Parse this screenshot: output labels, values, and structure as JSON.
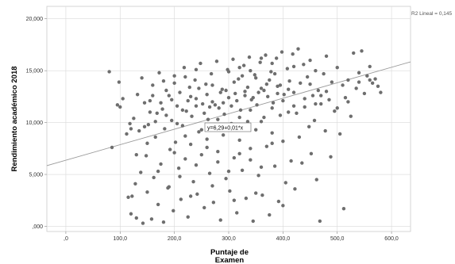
{
  "chart_data": {
    "type": "scatter",
    "title": "",
    "xlabel": "Puntaje de Examen",
    "xlabel_lines": [
      "Puntaje de",
      "Examen"
    ],
    "ylabel": "Rendimiento académico 2018",
    "xlim": [
      -35,
      635
    ],
    "ylim": [
      -500,
      21200
    ],
    "x_ticks": [
      0,
      100,
      200,
      300,
      400,
      500,
      600
    ],
    "x_tick_labels": [
      ",0",
      "100,0",
      "200,0",
      "300,0",
      "400,0",
      "500,0",
      "600,0"
    ],
    "y_ticks": [
      0,
      5000,
      10000,
      15000,
      20000
    ],
    "y_tick_labels": [
      ",000",
      "5,000",
      "10,000",
      "15,000",
      "20,000"
    ],
    "grid": true,
    "marker_color": "#6e6e6e",
    "fit_line": {
      "type": "linear",
      "equation_label": "y=6,29+0,01*x",
      "x_start": -35,
      "y_start": 5850,
      "x_end": 635,
      "y_end": 15850,
      "r2_label": "R2 Lineal = 0,145",
      "color": "#9a9a9a"
    },
    "series": [
      {
        "points": [
          [
            80,
            14900
          ],
          [
            85,
            7600
          ],
          [
            95,
            11700
          ],
          [
            98,
            13900
          ],
          [
            100,
            11500
          ],
          [
            105,
            12300
          ],
          [
            112,
            8900
          ],
          [
            115,
            2800
          ],
          [
            118,
            9900
          ],
          [
            120,
            1200
          ],
          [
            122,
            2900
          ],
          [
            125,
            10400
          ],
          [
            128,
            4100
          ],
          [
            130,
            800
          ],
          [
            132,
            12700
          ],
          [
            135,
            9200
          ],
          [
            138,
            5200
          ],
          [
            140,
            14300
          ],
          [
            142,
            300
          ],
          [
            145,
            11900
          ],
          [
            148,
            6800
          ],
          [
            150,
            3300
          ],
          [
            152,
            9800
          ],
          [
            155,
            12100
          ],
          [
            158,
            700
          ],
          [
            160,
            13600
          ],
          [
            162,
            4700
          ],
          [
            165,
            8600
          ],
          [
            168,
            10900
          ],
          [
            170,
            2100
          ],
          [
            172,
            14800
          ],
          [
            175,
            6000
          ],
          [
            178,
            11300
          ],
          [
            180,
            400
          ],
          [
            182,
            9400
          ],
          [
            185,
            13100
          ],
          [
            188,
            3700
          ],
          [
            190,
            12600
          ],
          [
            192,
            7400
          ],
          [
            195,
            10200
          ],
          [
            198,
            1500
          ],
          [
            200,
            14500
          ],
          [
            202,
            8100
          ],
          [
            205,
            11600
          ],
          [
            208,
            5600
          ],
          [
            210,
            12900
          ],
          [
            212,
            2600
          ],
          [
            215,
            9700
          ],
          [
            218,
            15300
          ],
          [
            220,
            6500
          ],
          [
            222,
            11100
          ],
          [
            225,
            900
          ],
          [
            228,
            13400
          ],
          [
            230,
            7900
          ],
          [
            232,
            10600
          ],
          [
            235,
            4300
          ],
          [
            238,
            14100
          ],
          [
            240,
            12300
          ],
          [
            242,
            3100
          ],
          [
            245,
            9100
          ],
          [
            248,
            15700
          ],
          [
            250,
            6900
          ],
          [
            252,
            11800
          ],
          [
            255,
            1800
          ],
          [
            258,
            13700
          ],
          [
            260,
            8400
          ],
          [
            262,
            10300
          ],
          [
            265,
            5100
          ],
          [
            268,
            14700
          ],
          [
            270,
            12000
          ],
          [
            272,
            2300
          ],
          [
            275,
            9500
          ],
          [
            278,
            15900
          ],
          [
            280,
            7200
          ],
          [
            282,
            11400
          ],
          [
            285,
            600
          ],
          [
            288,
            13200
          ],
          [
            290,
            8800
          ],
          [
            292,
            10800
          ],
          [
            295,
            4600
          ],
          [
            298,
            15100
          ],
          [
            300,
            12400
          ],
          [
            302,
            3400
          ],
          [
            305,
            9900
          ],
          [
            308,
            16100
          ],
          [
            310,
            6600
          ],
          [
            312,
            12800
          ],
          [
            315,
            1300
          ],
          [
            318,
            14200
          ],
          [
            320,
            8300
          ],
          [
            322,
            11200
          ],
          [
            325,
            5400
          ],
          [
            328,
            15500
          ],
          [
            330,
            13000
          ],
          [
            332,
            2700
          ],
          [
            335,
            10100
          ],
          [
            338,
            16300
          ],
          [
            340,
            7500
          ],
          [
            342,
            12200
          ],
          [
            345,
            500
          ],
          [
            348,
            14600
          ],
          [
            350,
            9300
          ],
          [
            352,
            11700
          ],
          [
            355,
            4900
          ],
          [
            358,
            15800
          ],
          [
            360,
            13300
          ],
          [
            362,
            3000
          ],
          [
            365,
            10500
          ],
          [
            368,
            16500
          ],
          [
            370,
            7700
          ],
          [
            372,
            12500
          ],
          [
            375,
            1100
          ],
          [
            378,
            14900
          ],
          [
            380,
            9000
          ],
          [
            382,
            11900
          ],
          [
            385,
            5800
          ],
          [
            388,
            16200
          ],
          [
            390,
            13500
          ],
          [
            392,
            2400
          ],
          [
            395,
            10700
          ],
          [
            398,
            16800
          ],
          [
            400,
            8200
          ],
          [
            402,
            12700
          ],
          [
            405,
            4200
          ],
          [
            408,
            15200
          ],
          [
            410,
            11000
          ],
          [
            412,
            14000
          ],
          [
            415,
            6300
          ],
          [
            418,
            16600
          ],
          [
            420,
            12900
          ],
          [
            422,
            3600
          ],
          [
            425,
            10900
          ],
          [
            428,
            17100
          ],
          [
            430,
            8600
          ],
          [
            432,
            13800
          ],
          [
            435,
            6100
          ],
          [
            438,
            15600
          ],
          [
            440,
            11500
          ],
          [
            445,
            14400
          ],
          [
            448,
            9600
          ],
          [
            450,
            16000
          ],
          [
            452,
            7000
          ],
          [
            455,
            12600
          ],
          [
            458,
            10200
          ],
          [
            460,
            15000
          ],
          [
            462,
            4500
          ],
          [
            465,
            13100
          ],
          [
            468,
            500
          ],
          [
            470,
            11800
          ],
          [
            475,
            14700
          ],
          [
            478,
            9200
          ],
          [
            480,
            16400
          ],
          [
            485,
            12200
          ],
          [
            488,
            6700
          ],
          [
            490,
            13900
          ],
          [
            495,
            11100
          ],
          [
            500,
            15300
          ],
          [
            505,
            8900
          ],
          [
            510,
            13600
          ],
          [
            512,
            1700
          ],
          [
            515,
            12400
          ],
          [
            520,
            14100
          ],
          [
            525,
            10600
          ],
          [
            530,
            16700
          ],
          [
            535,
            13300
          ],
          [
            540,
            14800
          ],
          [
            545,
            16900
          ],
          [
            550,
            12800
          ],
          [
            555,
            14500
          ],
          [
            560,
            15400
          ],
          [
            565,
            13800
          ],
          [
            570,
            14200
          ],
          [
            575,
            13500
          ],
          [
            580,
            12900
          ],
          [
            260,
            12700
          ],
          [
            240,
            11600
          ],
          [
            230,
            12500
          ],
          [
            270,
            13600
          ],
          [
            290,
            11900
          ],
          [
            310,
            13900
          ],
          [
            330,
            12600
          ],
          [
            350,
            14300
          ],
          [
            370,
            13700
          ],
          [
            390,
            12800
          ],
          [
            410,
            13200
          ],
          [
            255,
            10900
          ],
          [
            275,
            11700
          ],
          [
            295,
            13100
          ],
          [
            315,
            12100
          ],
          [
            335,
            13400
          ],
          [
            355,
            12900
          ],
          [
            375,
            14100
          ],
          [
            395,
            13600
          ],
          [
            215,
            11200
          ],
          [
            225,
            12100
          ],
          [
            245,
            13300
          ],
          [
            265,
            11500
          ],
          [
            285,
            12900
          ],
          [
            305,
            11600
          ],
          [
            325,
            14500
          ],
          [
            345,
            12400
          ],
          [
            365,
            13100
          ],
          [
            385,
            14700
          ],
          [
            205,
            9900
          ],
          [
            195,
            12200
          ],
          [
            185,
            10700
          ],
          [
            175,
            11900
          ],
          [
            165,
            10100
          ],
          [
            155,
            11000
          ],
          [
            145,
            9600
          ],
          [
            220,
            8700
          ],
          [
            250,
            9300
          ],
          [
            280,
            10300
          ],
          [
            300,
            9800
          ],
          [
            320,
            10500
          ],
          [
            340,
            11200
          ],
          [
            360,
            10100
          ],
          [
            380,
            11400
          ],
          [
            400,
            12100
          ],
          [
            420,
            11600
          ],
          [
            440,
            12300
          ],
          [
            460,
            11800
          ],
          [
            480,
            13000
          ],
          [
            200,
            7100
          ],
          [
            210,
            4800
          ],
          [
            240,
            5900
          ],
          [
            260,
            7600
          ],
          [
            280,
            6200
          ],
          [
            300,
            5300
          ],
          [
            320,
            7000
          ],
          [
            340,
            6400
          ],
          [
            360,
            5700
          ],
          [
            380,
            8000
          ],
          [
            190,
            3800
          ],
          [
            230,
            2900
          ],
          [
            270,
            3900
          ],
          [
            310,
            2500
          ],
          [
            350,
            3200
          ],
          [
            400,
            2000
          ],
          [
            170,
            5300
          ],
          [
            150,
            8000
          ],
          [
            130,
            6900
          ],
          [
            120,
            9400
          ],
          [
            160,
            12600
          ],
          [
            180,
            14000
          ],
          [
            200,
            13800
          ],
          [
            220,
            14400
          ],
          [
            240,
            15100
          ],
          [
            300,
            14900
          ],
          [
            320,
            15300
          ],
          [
            340,
            15000
          ],
          [
            360,
            16200
          ],
          [
            380,
            15700
          ],
          [
            420,
            15400
          ],
          [
            450,
            13700
          ],
          [
            470,
            12600
          ],
          [
            500,
            11400
          ],
          [
            520,
            12000
          ],
          [
            540,
            13900
          ],
          [
            560,
            14100
          ]
        ]
      }
    ]
  }
}
